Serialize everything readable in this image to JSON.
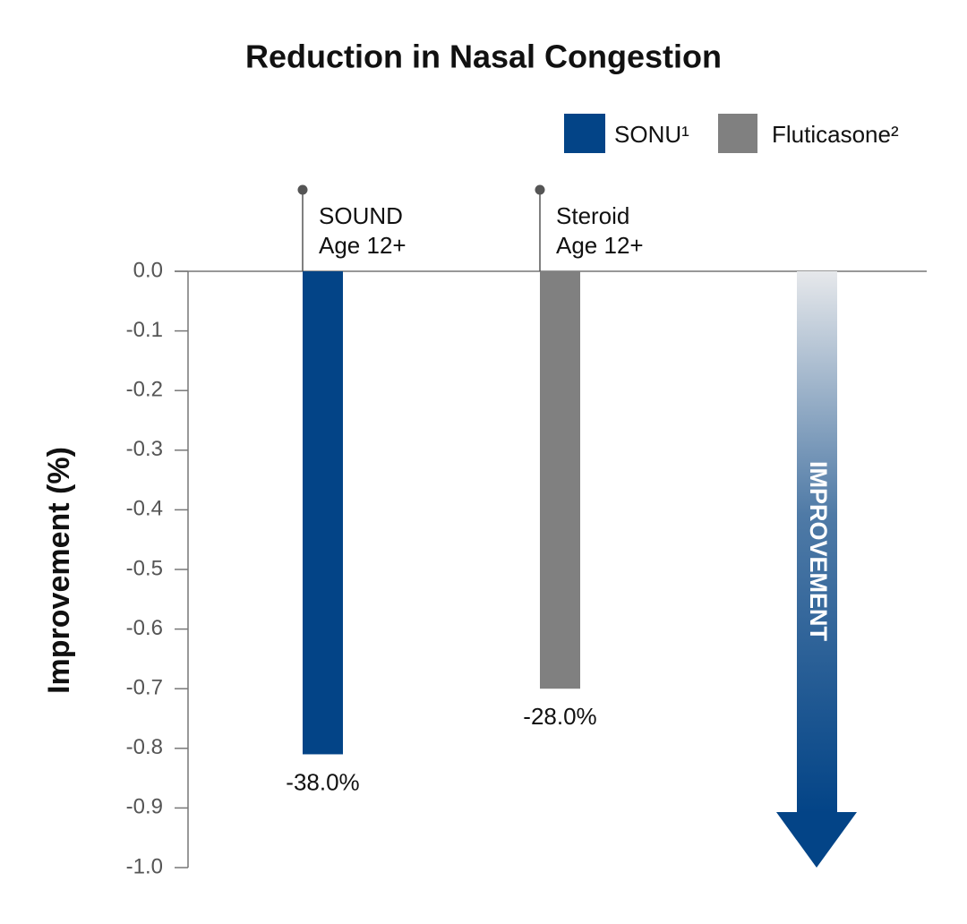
{
  "chart_data": {
    "type": "bar",
    "title": "Reduction in Nasal Congestion",
    "y_label": "Improvement (%)",
    "categories": [
      [
        "SOUND",
        "Age 12+"
      ],
      [
        "Steroid",
        "Age 12+"
      ]
    ],
    "series": [
      {
        "name": "SONU¹",
        "color": "#034487",
        "values": [
          -0.81,
          null
        ]
      },
      {
        "name": "Fluticasone²",
        "color": "#808080",
        "values": [
          null,
          -0.7
        ]
      }
    ],
    "annotations": [
      "-38.0%",
      "-28.0%",
      "IMPROVEMENT"
    ],
    "ylim": [
      -1,
      0
    ],
    "yticks": [
      {
        "value": 0,
        "label": "0.0"
      },
      -0.1,
      -0.2,
      -0.3,
      -0.4,
      -0.5,
      -0.6,
      -0.7,
      -0.8,
      -0.9,
      {
        "value": -1,
        "label": "-1.0"
      }
    ],
    "legend": "top-right"
  }
}
